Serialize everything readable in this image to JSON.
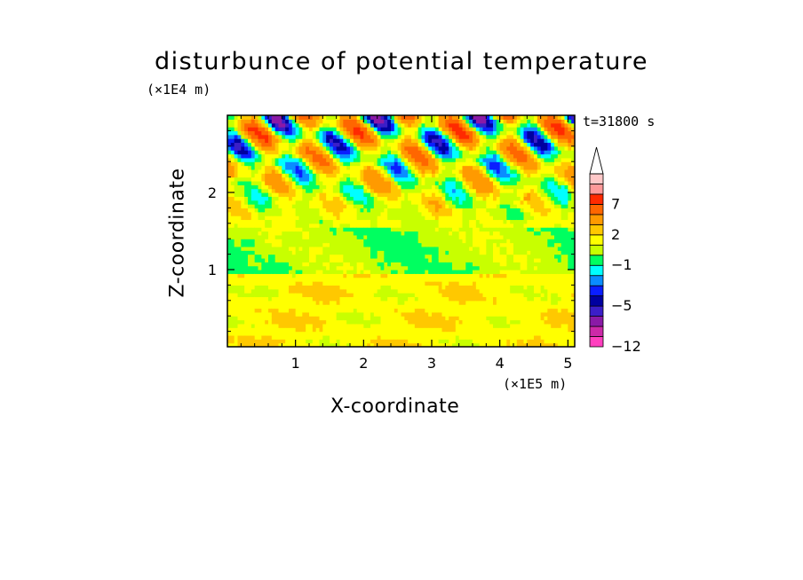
{
  "chart_data": {
    "type": "heatmap",
    "title": "disturbunce of potential temperature",
    "xlabel": "X-coordinate",
    "ylabel": "Z-coordinate",
    "x_unit_label": "(×1E5 m)",
    "y_unit_label": "(×1E4 m)",
    "time_label": "t=31800 s",
    "xlim": [
      0,
      5.1
    ],
    "ylim": [
      0,
      3.0
    ],
    "x_ticks": [
      "1",
      "2",
      "3",
      "4",
      "5"
    ],
    "y_ticks": [
      "1",
      "2"
    ],
    "colorbar": {
      "levels": [
        -12,
        -10,
        -8,
        -6,
        -5,
        -4,
        -3,
        -2,
        -1,
        0,
        1,
        2,
        3,
        5,
        7,
        9,
        11
      ],
      "tick_labels": [
        "-12",
        "-5",
        "-1",
        "2",
        "7"
      ],
      "colors": [
        "#ff3fbf",
        "#cc29a8",
        "#8a1aa6",
        "#3b1ec8",
        "#0000a0",
        "#0a1eff",
        "#0a8cff",
        "#00ffff",
        "#00ff60",
        "#c8ff00",
        "#ffff00",
        "#ffc800",
        "#ff9a00",
        "#ff6600",
        "#ff2a00",
        "#ff9999",
        "#ffc8c8"
      ],
      "extend": "max"
    }
  }
}
